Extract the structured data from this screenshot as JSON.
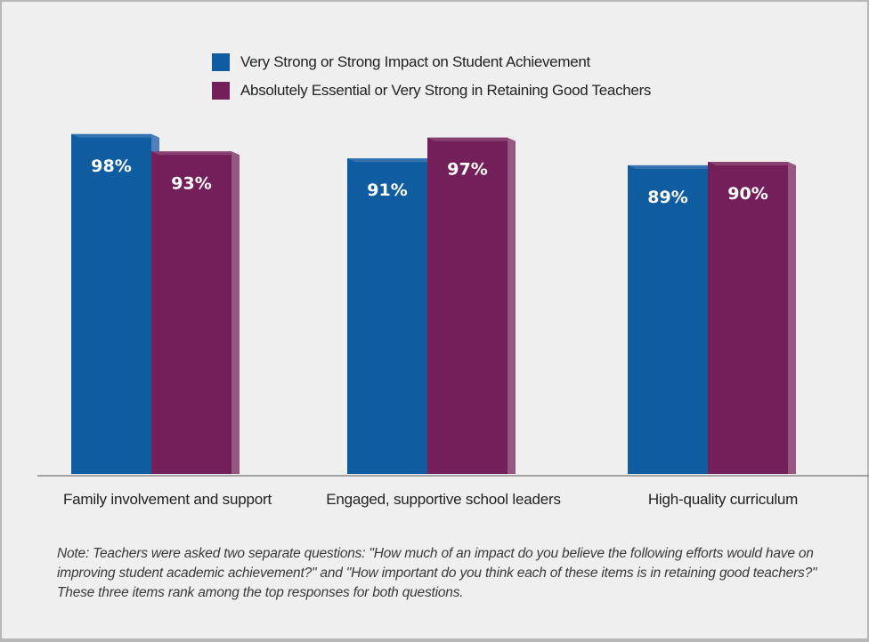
{
  "colors": {
    "background": "#efefef",
    "series_blue": "#0f5ca0",
    "series_blue_side": "#4d80bd",
    "series_purple": "#731f59",
    "series_purple_side": "#965880",
    "axis": "#888888",
    "label_text": "#ffffff"
  },
  "legend": {
    "items": [
      {
        "label": "Very Strong or Strong Impact on Student Achievement",
        "color": "#0f5ca0"
      },
      {
        "label": "Absolutely Essential or Very Strong in Retaining Good Teachers",
        "color": "#731f59"
      }
    ]
  },
  "chart_data": {
    "type": "bar",
    "categories": [
      "Family involvement and support",
      "Engaged, supportive school leaders",
      "High-quality curriculum"
    ],
    "series": [
      {
        "name": "Very Strong or Strong Impact on Student Achievement",
        "values": [
          98,
          91,
          89
        ],
        "labels": [
          "98%",
          "91%",
          "89%"
        ]
      },
      {
        "name": "Absolutely Essential or Very Strong in Retaining Good Teachers",
        "values": [
          93,
          97,
          90
        ],
        "labels": [
          "93%",
          "97%",
          "90%"
        ]
      }
    ],
    "legend": "top-center",
    "grid": false,
    "title": "",
    "xlabel": "",
    "ylabel": ""
  },
  "note": "Note: Teachers were asked two separate questions: \"How much of an impact do you believe the following efforts would have on improving student academic achievement?\" and \"How important do you think each of these items is in retaining good teachers?\" These three items rank among the top responses for both questions."
}
